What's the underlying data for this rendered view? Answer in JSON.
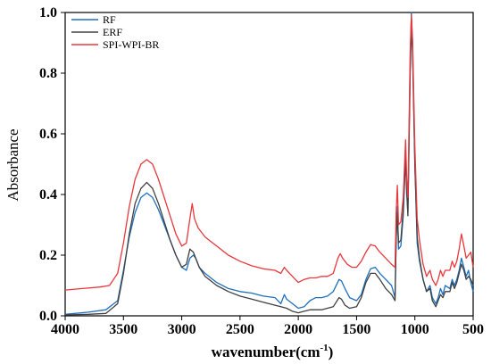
{
  "chart_data": {
    "type": "line",
    "xlabel": "wavenumber(cm",
    "xlabel_sup": "-1",
    "xlabel_close": ")",
    "ylabel": "Absorbance",
    "xlim": [
      4000,
      500
    ],
    "ylim": [
      0,
      1.0
    ],
    "x_reversed": true,
    "xticks": [
      4000,
      3500,
      3000,
      2500,
      2000,
      1500,
      1000,
      500
    ],
    "yticks": [
      0.0,
      0.2,
      0.4,
      0.6,
      0.8,
      1.0
    ],
    "ytick_labels": [
      "0.0",
      "0.2",
      "0.4",
      "0.6",
      "0.8",
      "1.0"
    ],
    "grid": false,
    "legend_position": "top-left",
    "series": [
      {
        "name": "RF",
        "color": "#1f6fbf",
        "points": [
          [
            4000,
            0.005
          ],
          [
            3800,
            0.012
          ],
          [
            3650,
            0.02
          ],
          [
            3550,
            0.05
          ],
          [
            3500,
            0.15
          ],
          [
            3450,
            0.26
          ],
          [
            3400,
            0.34
          ],
          [
            3350,
            0.39
          ],
          [
            3300,
            0.405
          ],
          [
            3250,
            0.39
          ],
          [
            3200,
            0.35
          ],
          [
            3150,
            0.3
          ],
          [
            3100,
            0.25
          ],
          [
            3050,
            0.2
          ],
          [
            3000,
            0.16
          ],
          [
            2960,
            0.15
          ],
          [
            2930,
            0.19
          ],
          [
            2900,
            0.2
          ],
          [
            2880,
            0.19
          ],
          [
            2850,
            0.16
          ],
          [
            2800,
            0.14
          ],
          [
            2700,
            0.11
          ],
          [
            2600,
            0.09
          ],
          [
            2500,
            0.08
          ],
          [
            2400,
            0.075
          ],
          [
            2300,
            0.065
          ],
          [
            2200,
            0.06
          ],
          [
            2150,
            0.04
          ],
          [
            2120,
            0.07
          ],
          [
            2100,
            0.055
          ],
          [
            2050,
            0.04
          ],
          [
            2000,
            0.025
          ],
          [
            1950,
            0.03
          ],
          [
            1900,
            0.05
          ],
          [
            1850,
            0.06
          ],
          [
            1800,
            0.06
          ],
          [
            1750,
            0.065
          ],
          [
            1700,
            0.08
          ],
          [
            1650,
            0.12
          ],
          [
            1630,
            0.115
          ],
          [
            1600,
            0.09
          ],
          [
            1560,
            0.06
          ],
          [
            1500,
            0.05
          ],
          [
            1460,
            0.07
          ],
          [
            1420,
            0.12
          ],
          [
            1380,
            0.155
          ],
          [
            1340,
            0.16
          ],
          [
            1300,
            0.14
          ],
          [
            1250,
            0.12
          ],
          [
            1200,
            0.1
          ],
          [
            1170,
            0.06
          ],
          [
            1160,
            0.25
          ],
          [
            1150,
            0.36
          ],
          [
            1140,
            0.22
          ],
          [
            1120,
            0.23
          ],
          [
            1100,
            0.33
          ],
          [
            1080,
            0.52
          ],
          [
            1070,
            0.4
          ],
          [
            1060,
            0.34
          ],
          [
            1040,
            0.84
          ],
          [
            1030,
            1.0
          ],
          [
            1020,
            0.9
          ],
          [
            1000,
            0.5
          ],
          [
            980,
            0.24
          ],
          [
            960,
            0.18
          ],
          [
            930,
            0.12
          ],
          [
            900,
            0.08
          ],
          [
            870,
            0.1
          ],
          [
            850,
            0.06
          ],
          [
            820,
            0.04
          ],
          [
            800,
            0.06
          ],
          [
            780,
            0.09
          ],
          [
            760,
            0.07
          ],
          [
            740,
            0.1
          ],
          [
            700,
            0.09
          ],
          [
            680,
            0.12
          ],
          [
            660,
            0.1
          ],
          [
            640,
            0.12
          ],
          [
            620,
            0.15
          ],
          [
            600,
            0.19
          ],
          [
            580,
            0.16
          ],
          [
            560,
            0.13
          ],
          [
            540,
            0.15
          ],
          [
            520,
            0.11
          ],
          [
            500,
            0.08
          ]
        ]
      },
      {
        "name": "ERF",
        "color": "#404040",
        "points": [
          [
            4000,
            0.003
          ],
          [
            3800,
            0.005
          ],
          [
            3650,
            0.008
          ],
          [
            3550,
            0.04
          ],
          [
            3500,
            0.14
          ],
          [
            3450,
            0.27
          ],
          [
            3400,
            0.37
          ],
          [
            3350,
            0.42
          ],
          [
            3300,
            0.44
          ],
          [
            3250,
            0.42
          ],
          [
            3200,
            0.37
          ],
          [
            3150,
            0.31
          ],
          [
            3100,
            0.25
          ],
          [
            3050,
            0.2
          ],
          [
            3000,
            0.16
          ],
          [
            2960,
            0.17
          ],
          [
            2930,
            0.22
          ],
          [
            2900,
            0.21
          ],
          [
            2880,
            0.19
          ],
          [
            2850,
            0.16
          ],
          [
            2800,
            0.13
          ],
          [
            2700,
            0.1
          ],
          [
            2600,
            0.08
          ],
          [
            2500,
            0.065
          ],
          [
            2400,
            0.055
          ],
          [
            2300,
            0.045
          ],
          [
            2200,
            0.035
          ],
          [
            2150,
            0.03
          ],
          [
            2100,
            0.025
          ],
          [
            2050,
            0.015
          ],
          [
            2000,
            0.01
          ],
          [
            1950,
            0.015
          ],
          [
            1900,
            0.02
          ],
          [
            1850,
            0.02
          ],
          [
            1800,
            0.02
          ],
          [
            1750,
            0.025
          ],
          [
            1700,
            0.03
          ],
          [
            1650,
            0.06
          ],
          [
            1630,
            0.055
          ],
          [
            1600,
            0.035
          ],
          [
            1560,
            0.025
          ],
          [
            1500,
            0.03
          ],
          [
            1460,
            0.06
          ],
          [
            1420,
            0.11
          ],
          [
            1380,
            0.14
          ],
          [
            1340,
            0.14
          ],
          [
            1300,
            0.12
          ],
          [
            1250,
            0.09
          ],
          [
            1200,
            0.07
          ],
          [
            1170,
            0.05
          ],
          [
            1160,
            0.26
          ],
          [
            1150,
            0.34
          ],
          [
            1140,
            0.24
          ],
          [
            1120,
            0.25
          ],
          [
            1100,
            0.35
          ],
          [
            1080,
            0.53
          ],
          [
            1070,
            0.42
          ],
          [
            1060,
            0.33
          ],
          [
            1040,
            0.8
          ],
          [
            1030,
            0.95
          ],
          [
            1020,
            0.87
          ],
          [
            1000,
            0.5
          ],
          [
            980,
            0.26
          ],
          [
            960,
            0.19
          ],
          [
            930,
            0.12
          ],
          [
            900,
            0.08
          ],
          [
            870,
            0.09
          ],
          [
            850,
            0.05
          ],
          [
            820,
            0.03
          ],
          [
            800,
            0.05
          ],
          [
            780,
            0.07
          ],
          [
            760,
            0.06
          ],
          [
            740,
            0.08
          ],
          [
            700,
            0.08
          ],
          [
            680,
            0.11
          ],
          [
            660,
            0.09
          ],
          [
            640,
            0.11
          ],
          [
            620,
            0.14
          ],
          [
            600,
            0.17
          ],
          [
            580,
            0.15
          ],
          [
            560,
            0.12
          ],
          [
            540,
            0.13
          ],
          [
            520,
            0.12
          ],
          [
            500,
            0.1
          ]
        ]
      },
      {
        "name": "SPI-WPI-BR",
        "color": "#e8383d",
        "points": [
          [
            4000,
            0.085
          ],
          [
            3850,
            0.09
          ],
          [
            3700,
            0.095
          ],
          [
            3620,
            0.1
          ],
          [
            3550,
            0.14
          ],
          [
            3500,
            0.24
          ],
          [
            3450,
            0.36
          ],
          [
            3400,
            0.45
          ],
          [
            3350,
            0.5
          ],
          [
            3300,
            0.515
          ],
          [
            3250,
            0.5
          ],
          [
            3200,
            0.45
          ],
          [
            3150,
            0.39
          ],
          [
            3100,
            0.33
          ],
          [
            3050,
            0.27
          ],
          [
            3000,
            0.23
          ],
          [
            2960,
            0.24
          ],
          [
            2930,
            0.32
          ],
          [
            2910,
            0.37
          ],
          [
            2890,
            0.32
          ],
          [
            2860,
            0.29
          ],
          [
            2800,
            0.26
          ],
          [
            2700,
            0.23
          ],
          [
            2600,
            0.2
          ],
          [
            2500,
            0.18
          ],
          [
            2400,
            0.165
          ],
          [
            2300,
            0.155
          ],
          [
            2200,
            0.15
          ],
          [
            2150,
            0.14
          ],
          [
            2120,
            0.16
          ],
          [
            2100,
            0.15
          ],
          [
            2050,
            0.13
          ],
          [
            2000,
            0.11
          ],
          [
            1950,
            0.12
          ],
          [
            1900,
            0.125
          ],
          [
            1850,
            0.125
          ],
          [
            1800,
            0.13
          ],
          [
            1750,
            0.13
          ],
          [
            1700,
            0.14
          ],
          [
            1660,
            0.19
          ],
          [
            1640,
            0.205
          ],
          [
            1620,
            0.19
          ],
          [
            1580,
            0.17
          ],
          [
            1540,
            0.16
          ],
          [
            1500,
            0.16
          ],
          [
            1460,
            0.18
          ],
          [
            1420,
            0.21
          ],
          [
            1380,
            0.235
          ],
          [
            1340,
            0.23
          ],
          [
            1300,
            0.21
          ],
          [
            1250,
            0.19
          ],
          [
            1200,
            0.17
          ],
          [
            1170,
            0.16
          ],
          [
            1160,
            0.34
          ],
          [
            1150,
            0.43
          ],
          [
            1140,
            0.3
          ],
          [
            1120,
            0.31
          ],
          [
            1100,
            0.39
          ],
          [
            1080,
            0.58
          ],
          [
            1070,
            0.45
          ],
          [
            1060,
            0.39
          ],
          [
            1040,
            0.87
          ],
          [
            1030,
            0.99
          ],
          [
            1020,
            0.91
          ],
          [
            1000,
            0.56
          ],
          [
            980,
            0.32
          ],
          [
            960,
            0.25
          ],
          [
            930,
            0.17
          ],
          [
            900,
            0.13
          ],
          [
            870,
            0.15
          ],
          [
            850,
            0.12
          ],
          [
            820,
            0.1
          ],
          [
            800,
            0.12
          ],
          [
            780,
            0.15
          ],
          [
            760,
            0.13
          ],
          [
            740,
            0.15
          ],
          [
            700,
            0.15
          ],
          [
            680,
            0.18
          ],
          [
            660,
            0.16
          ],
          [
            640,
            0.18
          ],
          [
            620,
            0.22
          ],
          [
            600,
            0.27
          ],
          [
            580,
            0.23
          ],
          [
            560,
            0.19
          ],
          [
            540,
            0.2
          ],
          [
            520,
            0.21
          ],
          [
            500,
            0.16
          ]
        ]
      }
    ]
  }
}
